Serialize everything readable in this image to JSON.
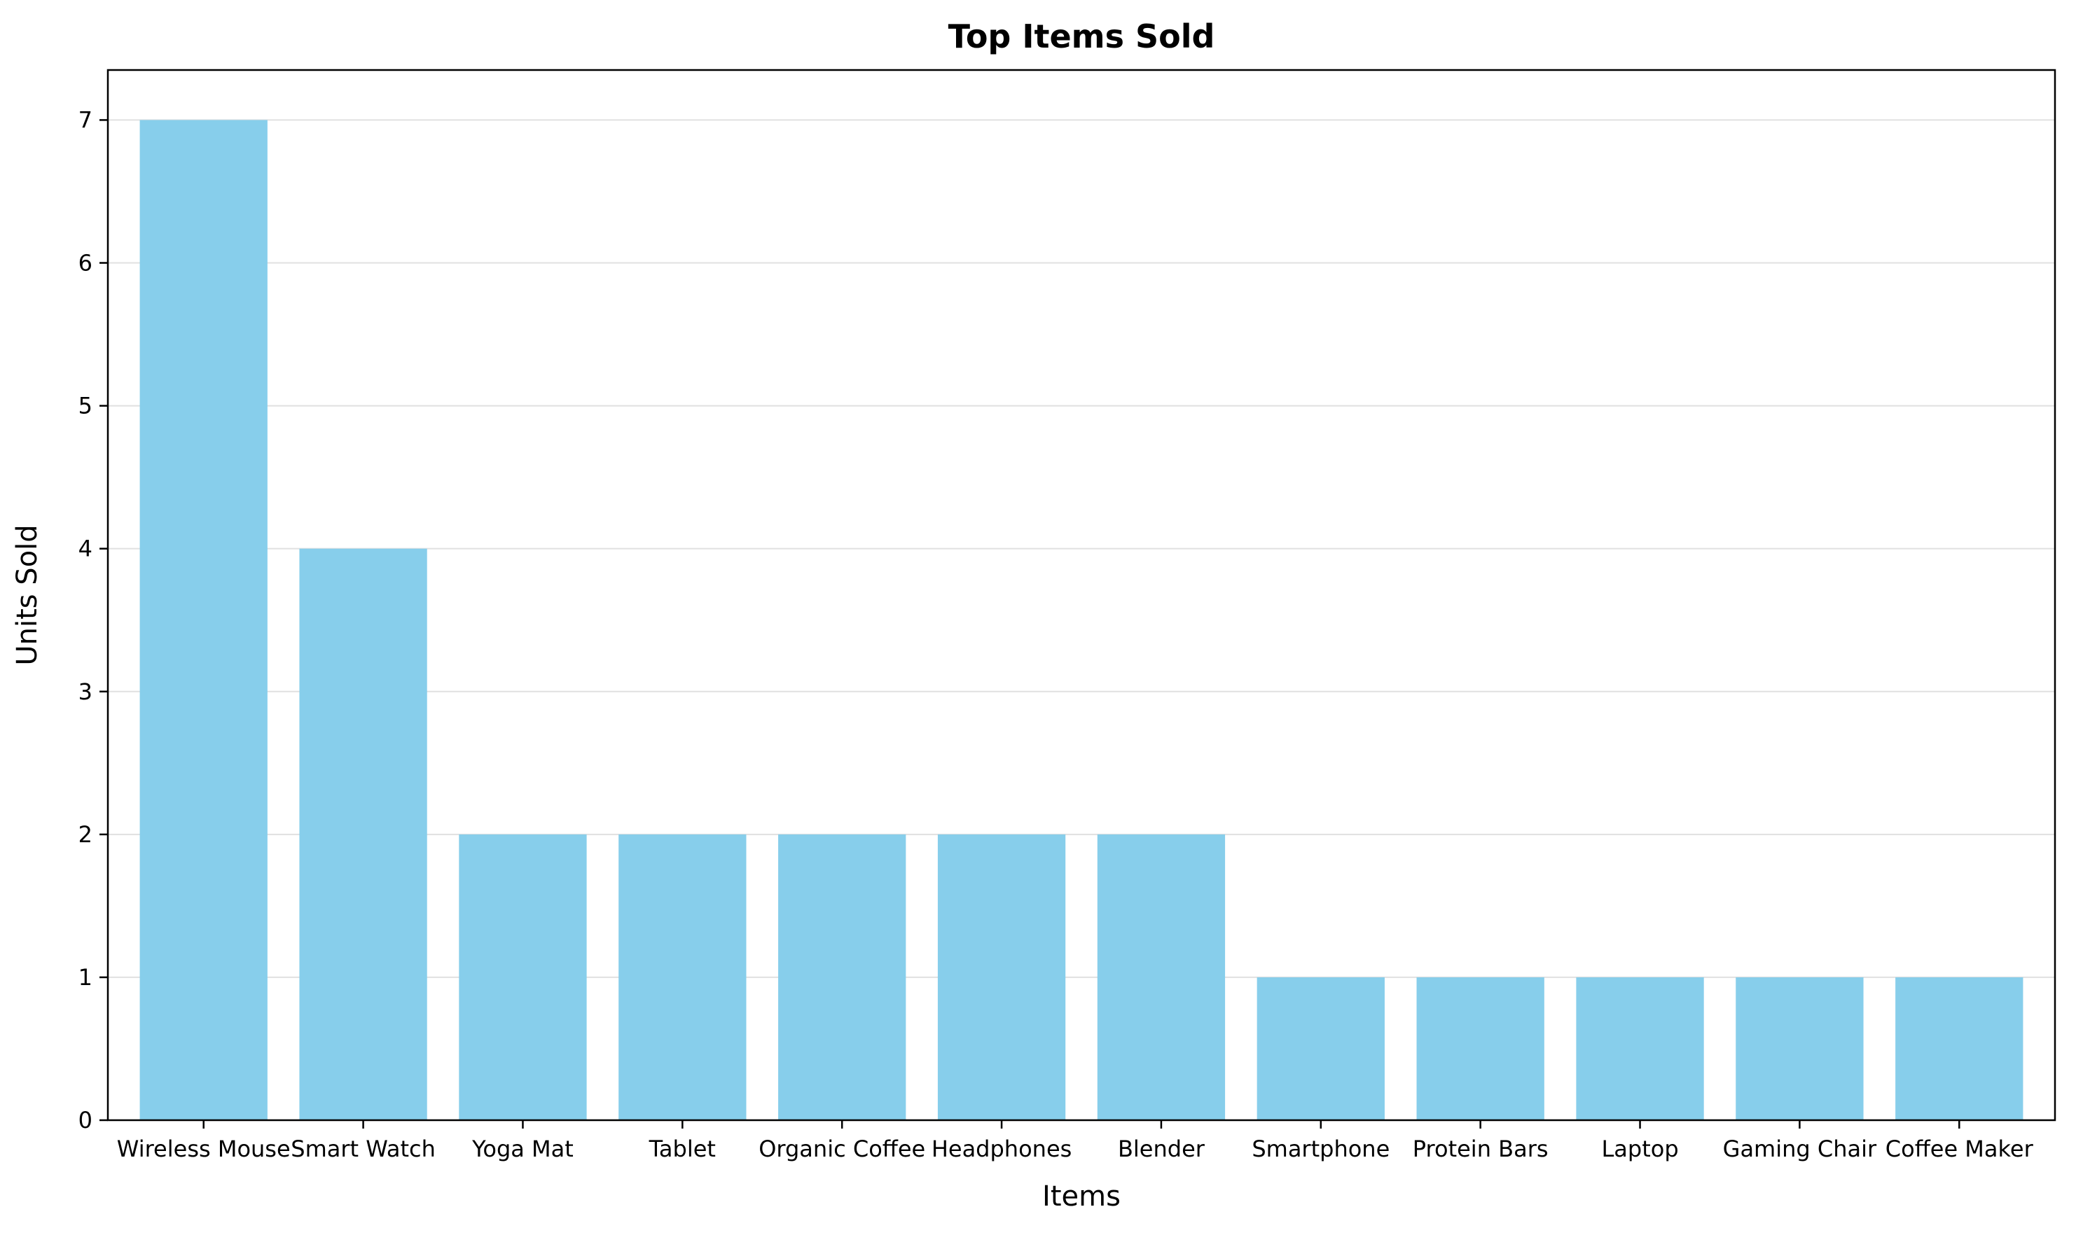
{
  "chart_data": {
    "type": "bar",
    "title": "Top Items Sold",
    "xlabel": "Items",
    "ylabel": "Units Sold",
    "categories": [
      "Wireless Mouse",
      "Smart Watch",
      "Yoga Mat",
      "Tablet",
      "Organic Coffee",
      "Headphones",
      "Blender",
      "Smartphone",
      "Protein Bars",
      "Laptop",
      "Gaming Chair",
      "Coffee Maker"
    ],
    "values": [
      7,
      4,
      2,
      2,
      2,
      2,
      2,
      1,
      1,
      1,
      1,
      1
    ],
    "ylim": [
      0,
      7.35
    ],
    "yticks": [
      0,
      1,
      2,
      3,
      4,
      5,
      6,
      7
    ],
    "grid": "horizontal",
    "legend": "none",
    "colors": {
      "bar": "#87ceeb",
      "grid": "#e0e0e0",
      "axis": "#000000"
    }
  }
}
